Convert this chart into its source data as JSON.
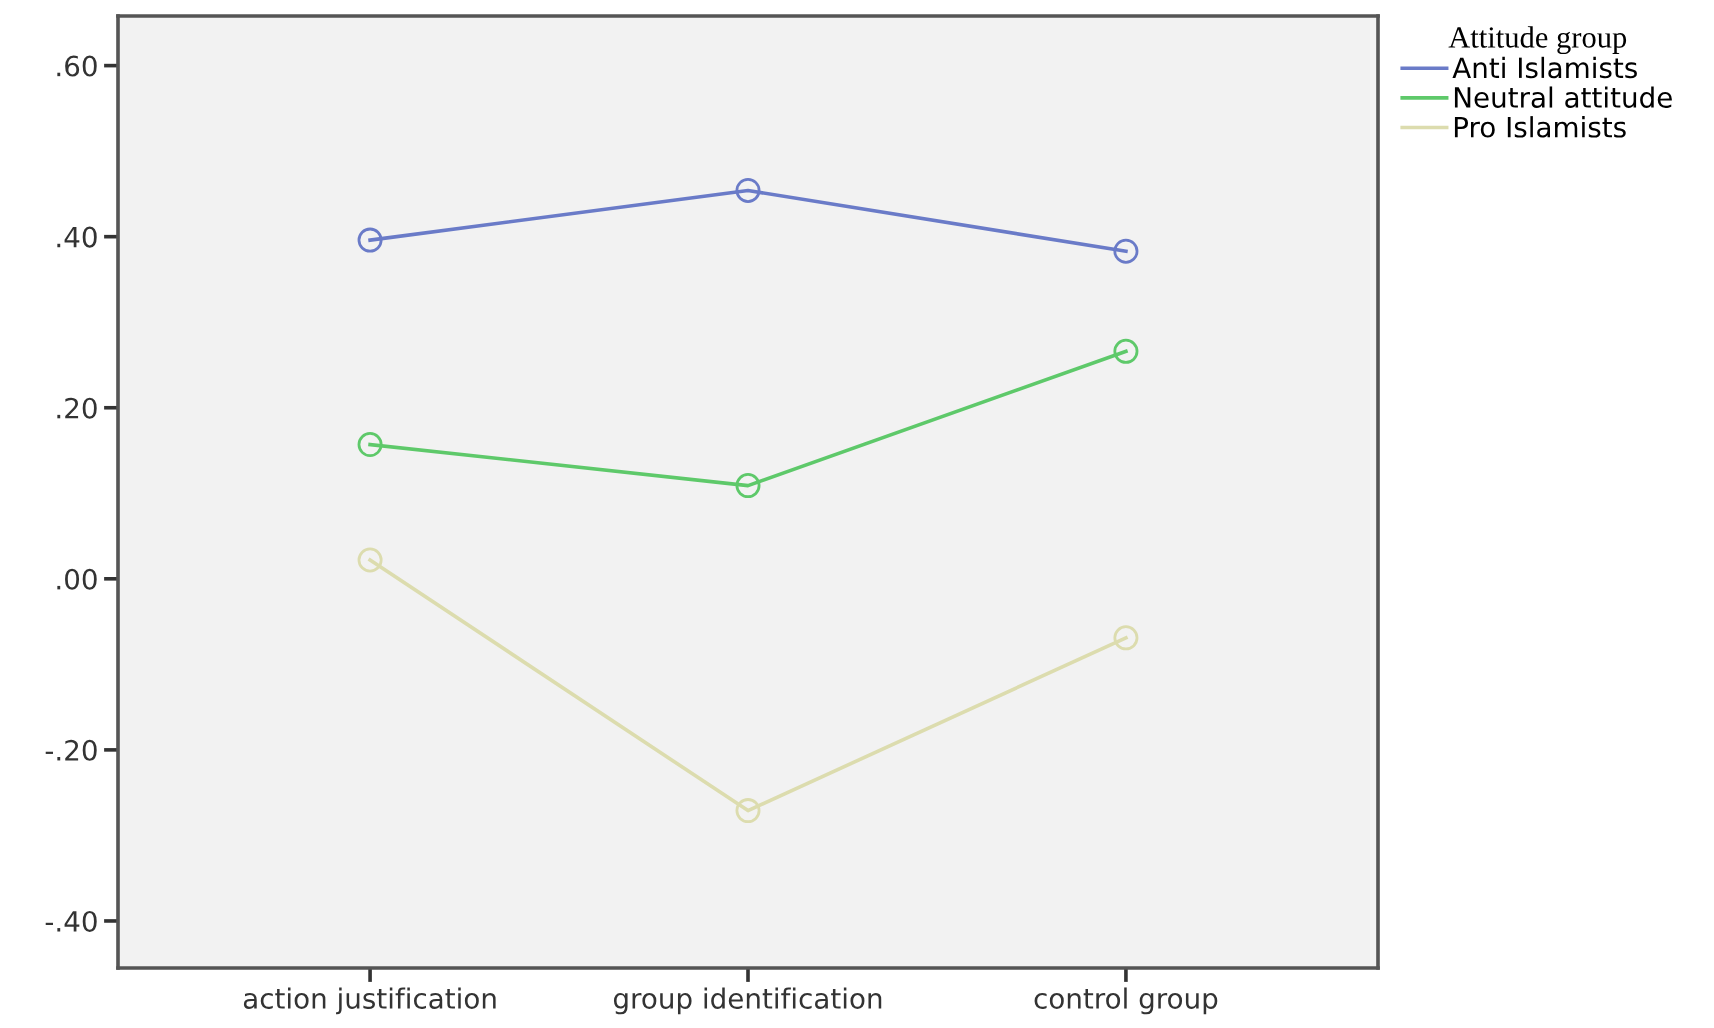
{
  "chart_data": {
    "type": "line",
    "categories": [
      "action justification",
      "group identification",
      "control group"
    ],
    "series": [
      {
        "name": "Anti Islamists",
        "color": "#6a7bc8",
        "values": [
          0.396,
          0.454,
          0.383
        ]
      },
      {
        "name": "Neutral attitude",
        "color": "#5ec96a",
        "values": [
          0.157,
          0.109,
          0.266
        ]
      },
      {
        "name": "Pro Islamists",
        "color": "#dcdcae",
        "values": [
          0.022,
          -0.271,
          -0.069
        ]
      }
    ],
    "legend_title": "Attitude group",
    "legend": "top right",
    "marker": "circle",
    "grid": false,
    "ylim": [
      -0.455,
      0.658
    ],
    "yticks": [
      {
        "value": -0.4,
        "label": "-.40"
      },
      {
        "value": -0.2,
        "label": "-.20"
      },
      {
        "value": 0,
        "label": ".00"
      },
      {
        "value": 0.2,
        "label": ".20"
      },
      {
        "value": 0.4,
        "label": ".40"
      },
      {
        "value": 0.6,
        "label": ".60"
      }
    ]
  }
}
